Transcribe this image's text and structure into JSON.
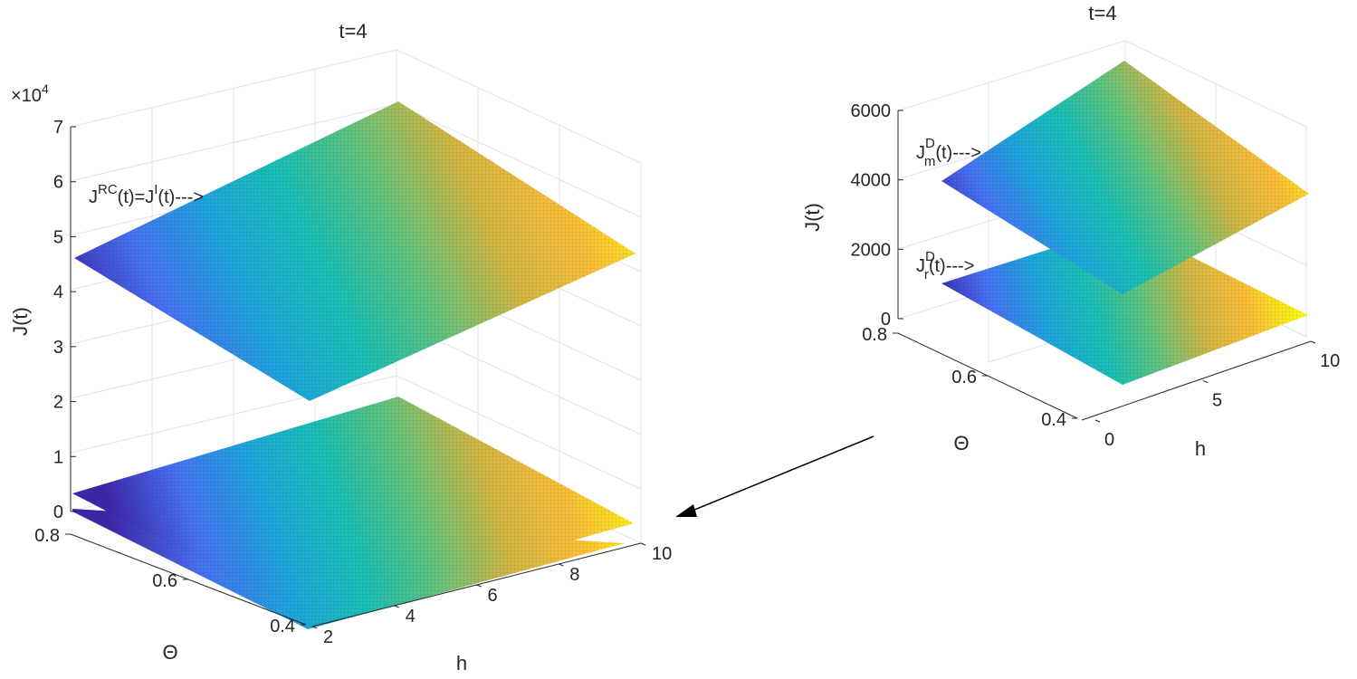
{
  "chart_data": [
    {
      "type": "surface",
      "title": "t=4",
      "xlabel": "h",
      "ylabel": "Θ",
      "zlabel": "J(t)",
      "exponent_label": "×10",
      "exponent": "4",
      "x_ticks": [
        "2",
        "4",
        "6",
        "8",
        "10"
      ],
      "y_ticks": [
        "0.4",
        "0.6",
        "0.8"
      ],
      "z_ticks": [
        "0",
        "1",
        "2",
        "3",
        "4",
        "5",
        "6",
        "7"
      ],
      "xlim": [
        2,
        10
      ],
      "ylim": [
        0.4,
        0.8
      ],
      "zlim": [
        0,
        70000
      ],
      "colormap": [
        "#3e26a8",
        "#4771f3",
        "#1ea6dc",
        "#1ac0b4",
        "#62c47b",
        "#d1b743",
        "#fcbf38",
        "#f9fb0e"
      ],
      "annotation": {
        "base": "J",
        "sup1": "RC",
        "mid": "(t)=J",
        "sup2": "I",
        "tail": "(t)--->"
      },
      "series": [
        {
          "corners": [
            [
              2,
              0.4,
              20000
            ],
            [
              10,
              0.4,
              47000
            ],
            [
              2,
              0.8,
              47000
            ],
            [
              10,
              0.8,
              74000
            ]
          ]
        },
        {
          "corners": [
            [
              2,
              0.4,
              0
            ],
            [
              10,
              0.4,
              3000
            ],
            [
              2,
              0.8,
              3000
            ],
            [
              10,
              0.8,
              20000
            ]
          ]
        },
        {
          "corners": [
            [
              2,
              0.4,
              0
            ],
            [
              10,
              0.4,
              1000
            ],
            [
              2,
              0.8,
              1000
            ],
            [
              10,
              0.8,
              17000
            ]
          ]
        }
      ]
    },
    {
      "type": "surface",
      "title": "t=4",
      "xlabel": "h",
      "ylabel": "Θ",
      "zlabel": "J(t)",
      "x_ticks": [
        "0",
        "5",
        "10"
      ],
      "y_ticks": [
        "0.4",
        "0.6",
        "0.8"
      ],
      "z_ticks": [
        "0",
        "2000",
        "4000",
        "6000"
      ],
      "xlim": [
        0,
        10
      ],
      "ylim": [
        0.4,
        0.8
      ],
      "zlim": [
        0,
        6000
      ],
      "annotations": [
        {
          "base": "J",
          "sup": "D",
          "sub": "m",
          "tail": "(t)--->"
        },
        {
          "base": "J",
          "sup": "D",
          "sub": "r",
          "tail": "(t)--->"
        }
      ],
      "series": [
        {
          "corners": [
            [
              0,
              0.4,
              2000
            ],
            [
              10,
              0.4,
              3600
            ],
            [
              0,
              0.8,
              3950
            ],
            [
              10,
              0.8,
              6500
            ]
          ]
        },
        {
          "corners": [
            [
              0,
              0.4,
              0
            ],
            [
              10,
              0.4,
              0
            ],
            [
              0,
              0.8,
              1000
            ],
            [
              10,
              0.8,
              2000
            ]
          ]
        }
      ]
    }
  ]
}
